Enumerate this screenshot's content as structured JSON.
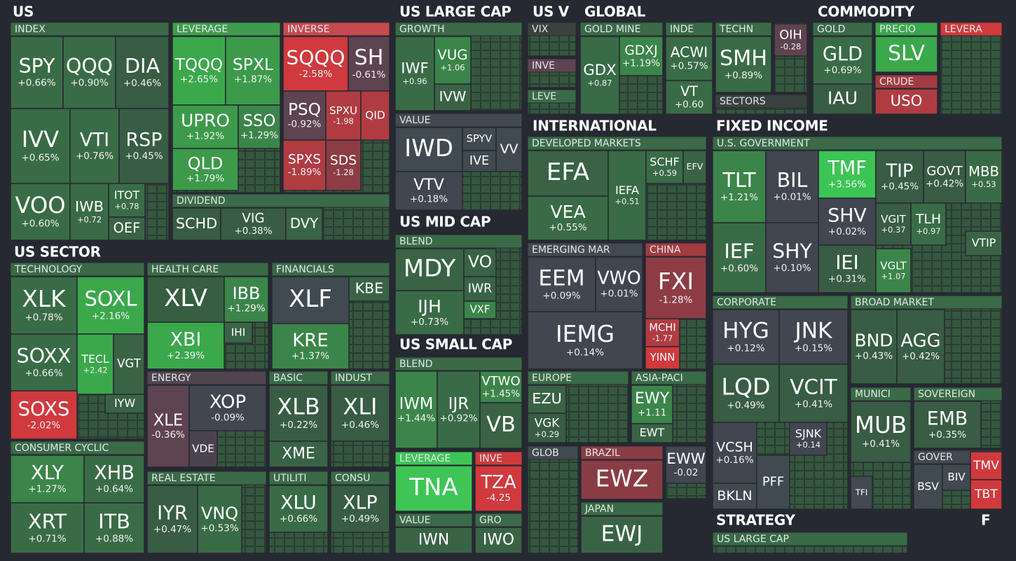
{
  "sections": [
    {
      "title": "US",
      "groups": [
        {
          "title": "INDEX",
          "tiles": [
            {
              "ticker": "SPY",
              "change": "+0.66%"
            },
            {
              "ticker": "QQQ",
              "change": "+0.90%"
            },
            {
              "ticker": "DIA",
              "change": "+0.46%"
            },
            {
              "ticker": "IVV",
              "change": "+0.65%"
            },
            {
              "ticker": "VTI",
              "change": "+0.76%"
            },
            {
              "ticker": "RSP",
              "change": "+0.45%"
            },
            {
              "ticker": "VOO",
              "change": "+0.60%"
            },
            {
              "ticker": "IWB",
              "change": "+0.72"
            },
            {
              "ticker": "ITOT",
              "change": "+0.78"
            },
            {
              "ticker": "OEF"
            }
          ]
        },
        {
          "title": "LEVERAGE",
          "tiles": [
            {
              "ticker": "TQQQ",
              "change": "+2.65%"
            },
            {
              "ticker": "SPXL",
              "change": "+1.87%"
            },
            {
              "ticker": "UPRO",
              "change": "+1.92%"
            },
            {
              "ticker": "SSO",
              "change": "+1.29%"
            },
            {
              "ticker": "QLD",
              "change": "+1.79%"
            }
          ]
        },
        {
          "title": "INVERSE",
          "tiles": [
            {
              "ticker": "SQQQ",
              "change": "-2.58%"
            },
            {
              "ticker": "SH",
              "change": "-0.61%"
            },
            {
              "ticker": "PSQ",
              "change": "-0.92%"
            },
            {
              "ticker": "SPXU",
              "change": "-1.98"
            },
            {
              "ticker": "QID"
            },
            {
              "ticker": "SPXS",
              "change": "-1.89%"
            },
            {
              "ticker": "SDS",
              "change": "-1.28"
            }
          ]
        },
        {
          "title": "DIVIDEND",
          "tiles": [
            {
              "ticker": "SCHD"
            },
            {
              "ticker": "VIG",
              "change": "+0.38%"
            },
            {
              "ticker": "DVY"
            }
          ]
        }
      ]
    },
    {
      "title": "US SECTOR",
      "groups": [
        {
          "title": "TECHNOLOGY",
          "tiles": [
            {
              "ticker": "XLK",
              "change": "+0.78%"
            },
            {
              "ticker": "SOXL",
              "change": "+2.16%"
            },
            {
              "ticker": "SOXX",
              "change": "+0.66%"
            },
            {
              "ticker": "TECL",
              "change": "+2.42"
            },
            {
              "ticker": "VGT"
            },
            {
              "ticker": "SOXS",
              "change": "-2.02%"
            },
            {
              "ticker": "IYW"
            }
          ]
        },
        {
          "title": "HEALTH CARE",
          "tiles": [
            {
              "ticker": "XLV"
            },
            {
              "ticker": "IBB",
              "change": "+1.29%"
            },
            {
              "ticker": "XBI",
              "change": "+2.39%"
            },
            {
              "ticker": "IHI"
            }
          ]
        },
        {
          "title": "FINANCIALS",
          "tiles": [
            {
              "ticker": "XLF"
            },
            {
              "ticker": "KBE"
            },
            {
              "ticker": "KRE",
              "change": "+1.37%"
            }
          ]
        },
        {
          "title": "ENERGY",
          "tiles": [
            {
              "ticker": "XLE",
              "change": "-0.36%"
            },
            {
              "ticker": "XOP",
              "change": "-0.09%"
            },
            {
              "ticker": "VDE"
            }
          ]
        },
        {
          "title": "BASIC",
          "tiles": [
            {
              "ticker": "XLB",
              "change": "+0.22%"
            },
            {
              "ticker": "XME"
            }
          ]
        },
        {
          "title": "INDUST",
          "tiles": [
            {
              "ticker": "XLI",
              "change": "+0.46%"
            }
          ]
        },
        {
          "title": "CONSUMER CYCLIC",
          "tiles": [
            {
              "ticker": "XLY",
              "change": "+1.27%"
            },
            {
              "ticker": "XHB",
              "change": "+0.64%"
            },
            {
              "ticker": "XRT",
              "change": "+0.71%"
            },
            {
              "ticker": "ITB",
              "change": "+0.88%"
            }
          ]
        },
        {
          "title": "REAL ESTATE",
          "tiles": [
            {
              "ticker": "IYR",
              "change": "+0.47%"
            },
            {
              "ticker": "VNQ",
              "change": "+0.53%"
            }
          ]
        },
        {
          "title": "UTILITI",
          "tiles": [
            {
              "ticker": "XLU",
              "change": "+0.66%"
            }
          ]
        },
        {
          "title": "CONSU",
          "tiles": [
            {
              "ticker": "XLP",
              "change": "+0.49%"
            }
          ]
        }
      ]
    },
    {
      "title": "US LARGE CAP",
      "groups": [
        {
          "title": "GROWTH",
          "tiles": [
            {
              "ticker": "IWF",
              "change": "+0.96"
            },
            {
              "ticker": "VUG",
              "change": "+1.06"
            },
            {
              "ticker": "IVW"
            }
          ]
        },
        {
          "title": "VALUE",
          "tiles": [
            {
              "ticker": "IWD"
            },
            {
              "ticker": "SPYV"
            },
            {
              "ticker": "IVE"
            },
            {
              "ticker": "VV"
            },
            {
              "ticker": "VTV",
              "change": "+0.18%"
            }
          ]
        }
      ]
    },
    {
      "title": "US MID CAP",
      "groups": [
        {
          "title": "BLEND",
          "tiles": [
            {
              "ticker": "MDY"
            },
            {
              "ticker": "VO"
            },
            {
              "ticker": "IWR"
            },
            {
              "ticker": "VXF"
            },
            {
              "ticker": "IJH",
              "change": "+0.73%"
            }
          ]
        }
      ]
    },
    {
      "title": "US SMALL CAP",
      "groups": [
        {
          "title": "BLEND",
          "tiles": [
            {
              "ticker": "IWM",
              "change": "+1.44%"
            },
            {
              "ticker": "IJR",
              "change": "+0.92%"
            },
            {
              "ticker": "VTWO",
              "change": "+1.45%"
            },
            {
              "ticker": "VB"
            }
          ]
        },
        {
          "title": "LEVERAGE",
          "tiles": [
            {
              "ticker": "TNA"
            }
          ]
        },
        {
          "title": "INVE",
          "tiles": [
            {
              "ticker": "TZA",
              "change": "-4.25"
            }
          ]
        },
        {
          "title": "VALUE",
          "tiles": [
            {
              "ticker": "IWN"
            }
          ]
        },
        {
          "title": "GRO",
          "tiles": [
            {
              "ticker": "IWO"
            }
          ]
        }
      ]
    },
    {
      "title": "US V",
      "groups": [
        {
          "title": "VIX",
          "tiles": []
        },
        {
          "title": "INVE",
          "tiles": []
        },
        {
          "title": "LEVE",
          "tiles": []
        }
      ]
    },
    {
      "title": "GLOBAL",
      "groups": [
        {
          "title": "GOLD MINE",
          "tiles": [
            {
              "ticker": "GDX",
              "change": "+0.87"
            },
            {
              "ticker": "GDXJ",
              "change": "+1.19%"
            }
          ]
        },
        {
          "title": "INDE",
          "tiles": [
            {
              "ticker": "ACWI",
              "change": "+0.57%"
            },
            {
              "ticker": "VT",
              "change": "+0.60"
            }
          ]
        },
        {
          "title": "TECHN",
          "tiles": [
            {
              "ticker": "SMH",
              "change": "+0.89%"
            }
          ]
        },
        {
          "tiles": [
            {
              "ticker": "OIH",
              "change": "-0.28"
            }
          ]
        },
        {
          "title": "SECTORS",
          "tiles": []
        }
      ]
    },
    {
      "title": "COMMODITY",
      "groups": [
        {
          "title": "GOLD",
          "tiles": [
            {
              "ticker": "GLD",
              "change": "+0.69%"
            },
            {
              "ticker": "IAU"
            }
          ]
        },
        {
          "title": "PRECIO",
          "tiles": [
            {
              "ticker": "SLV"
            }
          ]
        },
        {
          "title": "CRUDE",
          "tiles": [
            {
              "ticker": "USO"
            }
          ]
        },
        {
          "title": "LEVERA",
          "tiles": []
        }
      ]
    },
    {
      "title": "INTERNATIONAL",
      "groups": [
        {
          "title": "DEVELOPED MARKETS",
          "tiles": [
            {
              "ticker": "EFA"
            },
            {
              "ticker": "VEA",
              "change": "+0.55%"
            },
            {
              "ticker": "IEFA",
              "change": "+0.51"
            },
            {
              "ticker": "SCHF",
              "change": "+0.59"
            },
            {
              "ticker": "EFV"
            }
          ]
        },
        {
          "title": "EMERGING MAR",
          "tiles": [
            {
              "ticker": "EEM",
              "change": "+0.09%"
            },
            {
              "ticker": "VWO",
              "change": "+0.01%"
            },
            {
              "ticker": "IEMG",
              "change": "+0.14%"
            }
          ]
        },
        {
          "title": "CHINA",
          "tiles": [
            {
              "ticker": "FXI",
              "change": "-1.28%"
            },
            {
              "ticker": "MCHI",
              "change": "-1.77"
            },
            {
              "ticker": "YINN"
            }
          ]
        },
        {
          "title": "EUROPE",
          "tiles": [
            {
              "ticker": "EZU"
            },
            {
              "ticker": "VGK",
              "change": "+0.29"
            }
          ]
        },
        {
          "title": "ASIA-PACI",
          "tiles": [
            {
              "ticker": "EWY",
              "change": "+1.11"
            },
            {
              "ticker": "EWT"
            }
          ]
        },
        {
          "title": "GLOB",
          "tiles": []
        },
        {
          "title": "BRAZIL",
          "tiles": [
            {
              "ticker": "EWZ"
            }
          ]
        },
        {
          "tiles": [
            {
              "ticker": "EWW",
              "change": "-0.02"
            }
          ]
        },
        {
          "title": "JAPAN",
          "tiles": [
            {
              "ticker": "EWJ"
            }
          ]
        }
      ]
    },
    {
      "title": "FIXED INCOME",
      "groups": [
        {
          "title": "U.S. GOVERNMENT",
          "tiles": [
            {
              "ticker": "TLT",
              "change": "+1.21%"
            },
            {
              "ticker": "BIL",
              "change": "+0.01%"
            },
            {
              "ticker": "TMF",
              "change": "+3.56%"
            },
            {
              "ticker": "TIP",
              "change": "+0.45%"
            },
            {
              "ticker": "GOVT",
              "change": "+0.42%"
            },
            {
              "ticker": "MBB",
              "change": "+0.53"
            },
            {
              "ticker": "SHV",
              "change": "+0.02%"
            },
            {
              "ticker": "VGIT",
              "change": "+0.37"
            },
            {
              "ticker": "TLH",
              "change": "+0.97"
            },
            {
              "ticker": "VTIP"
            },
            {
              "ticker": "IEF",
              "change": "+0.60%"
            },
            {
              "ticker": "SHY",
              "change": "+0.10%"
            },
            {
              "ticker": "IEI",
              "change": "+0.31%"
            },
            {
              "ticker": "VGLT",
              "change": "+1.07"
            }
          ]
        },
        {
          "title": "CORPORATE",
          "tiles": [
            {
              "ticker": "HYG",
              "change": "+0.12%"
            },
            {
              "ticker": "JNK",
              "change": "+0.15%"
            },
            {
              "ticker": "LQD",
              "change": "+0.49%"
            },
            {
              "ticker": "VCIT",
              "change": "+0.41%"
            },
            {
              "ticker": "VCSH",
              "change": "+0.16%"
            },
            {
              "ticker": "SJNK",
              "change": "+0.14"
            },
            {
              "ticker": "BKLN"
            },
            {
              "ticker": "PFF"
            }
          ]
        },
        {
          "title": "BROAD MARKET",
          "tiles": [
            {
              "ticker": "BND",
              "change": "+0.43%"
            },
            {
              "ticker": "AGG",
              "change": "+0.42%"
            }
          ]
        },
        {
          "title": "MUNICI",
          "tiles": [
            {
              "ticker": "MUB",
              "change": "+0.41%"
            },
            {
              "ticker": "TFI"
            }
          ]
        },
        {
          "title": "SOVEREIGN",
          "tiles": [
            {
              "ticker": "EMB",
              "change": "+0.35%"
            }
          ]
        },
        {
          "title": "GOVER",
          "tiles": [
            {
              "ticker": "BSV"
            },
            {
              "ticker": "BIV"
            },
            {
              "ticker": "TMV"
            },
            {
              "ticker": "TBT"
            }
          ]
        }
      ]
    },
    {
      "title": "STRATEGY",
      "groups": [
        {
          "title": "US LARGE CAP",
          "tiles": []
        }
      ]
    },
    {
      "title": "F",
      "groups": []
    }
  ]
}
